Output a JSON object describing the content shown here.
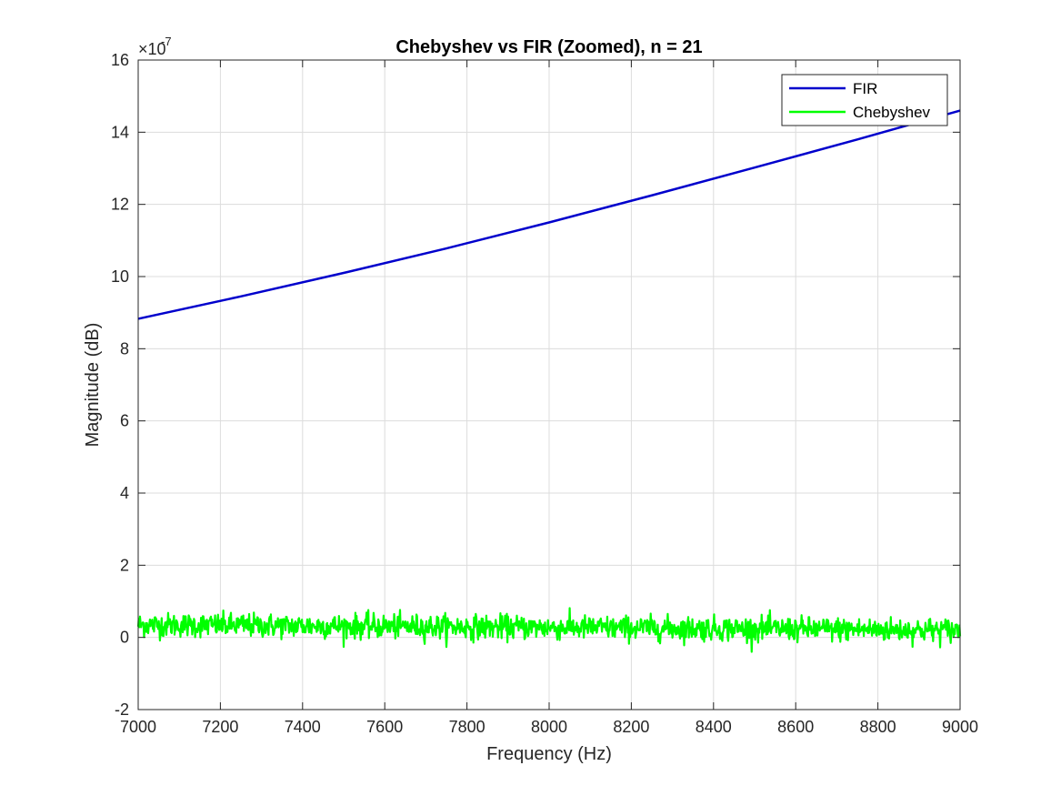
{
  "chart_data": {
    "type": "line",
    "title": "Chebyshev vs FIR (Zoomed), n = 21",
    "xlabel": "Frequency (Hz)",
    "ylabel": "Magnitude (dB)",
    "y_exponent_base": "×10",
    "y_exponent_power": "-7",
    "xlim": [
      7000,
      9000
    ],
    "ylim": [
      -2,
      16
    ],
    "x_ticks": [
      7000,
      7200,
      7400,
      7600,
      7800,
      8000,
      8200,
      8400,
      8600,
      8800,
      9000
    ],
    "y_ticks": [
      -2,
      0,
      2,
      4,
      6,
      8,
      10,
      12,
      14,
      16
    ],
    "grid": true,
    "legend_position": "top-right",
    "series": [
      {
        "name": "FIR",
        "color": "#0000cc",
        "x": [
          7000,
          7250,
          7500,
          7750,
          8000,
          8250,
          8500,
          8750,
          9000
        ],
        "y": [
          8.83,
          9.45,
          10.1,
          10.78,
          11.5,
          12.25,
          13.02,
          13.8,
          14.6
        ]
      },
      {
        "name": "Chebyshev",
        "color": "#00ff00",
        "x_range": [
          7000,
          9000
        ],
        "y_mean_start": 0.35,
        "y_mean_end": 0.2,
        "noise_amplitude": 0.22,
        "samples": 1400
      }
    ]
  }
}
